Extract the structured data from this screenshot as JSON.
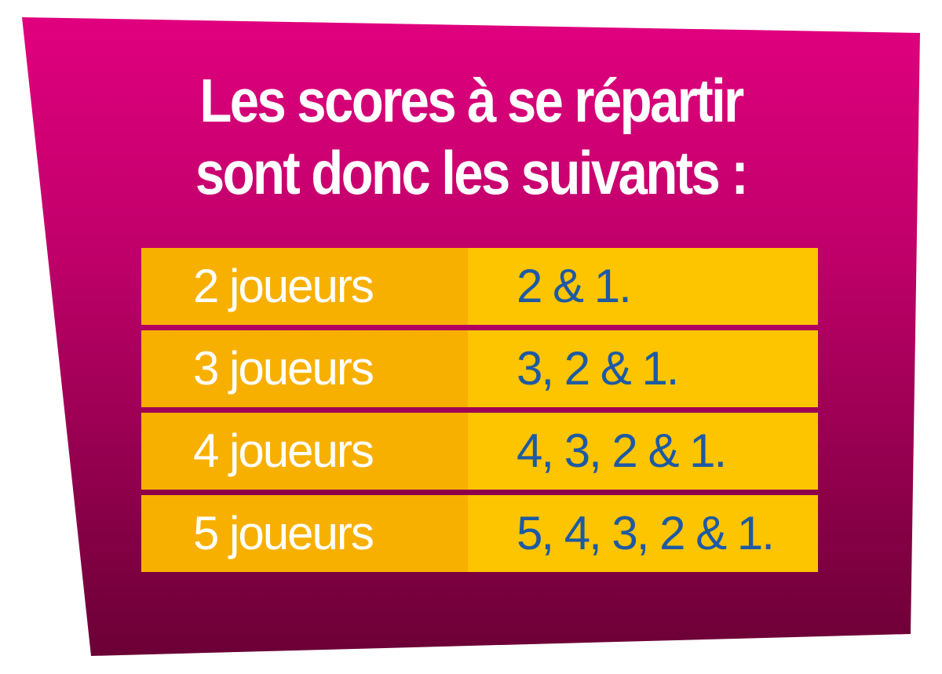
{
  "title": {
    "line1": "Les scores à se répartir",
    "line2": "sont donc les suivants :"
  },
  "rows": [
    {
      "label": "2 joueurs",
      "value": "2 & 1."
    },
    {
      "label": "3 joueurs",
      "value": "3, 2 & 1."
    },
    {
      "label": "4 joueurs",
      "value": "4, 3, 2 & 1."
    },
    {
      "label": "5 joueurs",
      "value": "5, 4, 3, 2 & 1."
    }
  ],
  "colors": {
    "panel_top": "#e0007e",
    "panel_bottom": "#6b0035",
    "label_cell": "#f8b000",
    "value_cell": "#fdc400",
    "value_text": "#1d5aa3",
    "title_text": "#ffffff"
  }
}
